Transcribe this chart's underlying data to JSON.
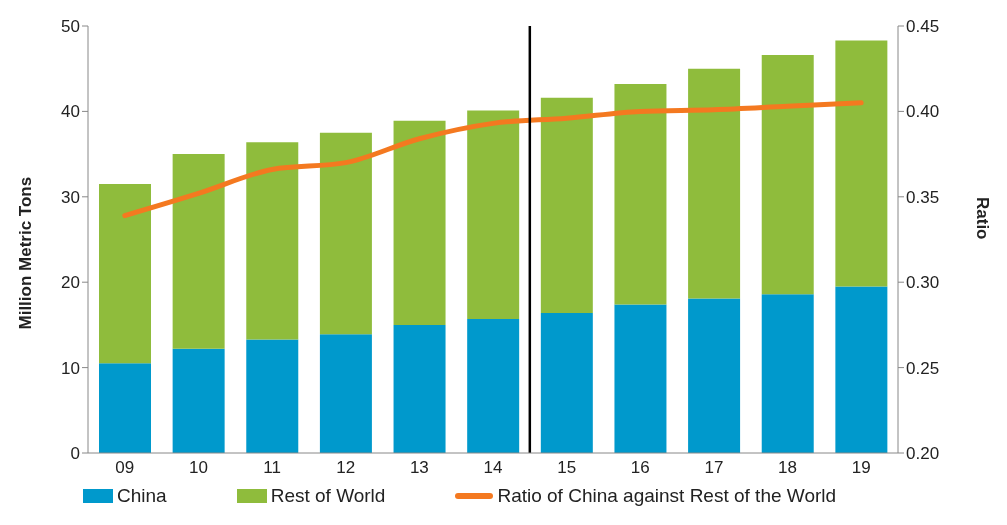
{
  "chart_data": {
    "type": "bar",
    "stacked": true,
    "categories": [
      "09",
      "10",
      "11",
      "12",
      "13",
      "14",
      "15",
      "16",
      "17",
      "18",
      "19"
    ],
    "series": [
      {
        "name": "China",
        "color": "#0099cc",
        "values": [
          10.5,
          12.2,
          13.3,
          13.9,
          15.0,
          15.7,
          16.4,
          17.4,
          18.1,
          18.6,
          19.5
        ]
      },
      {
        "name": "Rest of World",
        "color": "#8fbc3c",
        "values": [
          21.0,
          22.8,
          23.1,
          23.6,
          23.9,
          24.4,
          25.2,
          25.8,
          26.9,
          28.0,
          28.8
        ]
      },
      {
        "name": "Ratio of China against Rest of the World",
        "type": "line",
        "axis": "y2",
        "color": "#f47920",
        "values": [
          0.339,
          0.352,
          0.366,
          0.37,
          0.384,
          0.393,
          0.396,
          0.4,
          0.401,
          0.403,
          0.405
        ]
      }
    ],
    "ylabel": "Million Metric Tons",
    "y2label": "Ratio",
    "ylim": [
      0,
      50
    ],
    "yticks": [
      0,
      10,
      20,
      30,
      40,
      50
    ],
    "y2lim": [
      0.2,
      0.45
    ],
    "y2ticks": [
      {
        "value": 0.2,
        "label": "0.20"
      },
      {
        "value": 0.25,
        "label": "0.25"
      },
      {
        "value": 0.3,
        "label": "0.30"
      },
      {
        "value": 0.35,
        "label": "0.35"
      },
      {
        "value": 0.4,
        "label": "0.40"
      },
      {
        "value": 0.45,
        "label": "0.45"
      }
    ],
    "grid": false,
    "legend": "bottom",
    "marker": "none",
    "line_style": "solid"
  }
}
